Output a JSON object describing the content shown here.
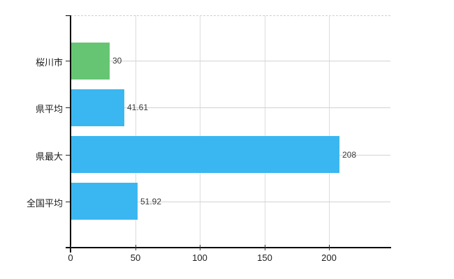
{
  "chart_data": {
    "type": "bar",
    "orientation": "horizontal",
    "title": "",
    "xlabel": "",
    "ylabel": "",
    "categories": [
      "桜川市",
      "県平均",
      "県最大",
      "全国平均"
    ],
    "values": [
      30,
      41.61,
      208,
      51.92
    ],
    "value_labels": [
      "30",
      "41.61",
      "208",
      "51.92"
    ],
    "bar_colors": [
      "#66c573",
      "#3ab7f0",
      "#3ab7f0",
      "#3ab7f0"
    ],
    "x_ticks": [
      0,
      50,
      100,
      150,
      200
    ],
    "x_tick_labels": [
      "0",
      "50",
      "100",
      "150",
      "200"
    ],
    "xlim": [
      0,
      247.5
    ],
    "grid": true,
    "grid_color": "#d2d2d2",
    "top_border_style": "dashed",
    "axis_color": "#000000",
    "background_color": "#ffffff",
    "legend": "none"
  }
}
